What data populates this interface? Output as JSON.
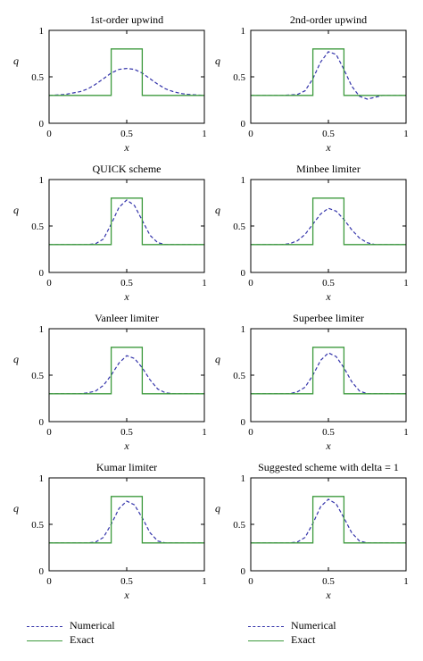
{
  "colors": {
    "numerical": "#3333aa",
    "exact": "#3c9a3c",
    "axes": "#000000"
  },
  "chart_data": [
    {
      "type": "line",
      "title": "1st-order upwind",
      "xlabel": "x",
      "ylabel": "q",
      "xlim": [
        0,
        1
      ],
      "ylim": [
        0,
        1
      ],
      "xticks": [
        "0",
        "0.5",
        "1"
      ],
      "yticks": [
        "0",
        "0.5",
        "1"
      ],
      "grid": false,
      "series": [
        {
          "name": "Numerical",
          "style": "dashed",
          "x": [
            0,
            0.1,
            0.2,
            0.25,
            0.3,
            0.35,
            0.4,
            0.45,
            0.5,
            0.55,
            0.6,
            0.65,
            0.7,
            0.75,
            0.8,
            0.85,
            0.9,
            1.0
          ],
          "y": [
            0.3,
            0.31,
            0.34,
            0.37,
            0.42,
            0.48,
            0.54,
            0.58,
            0.59,
            0.58,
            0.54,
            0.48,
            0.42,
            0.37,
            0.34,
            0.32,
            0.31,
            0.3
          ]
        },
        {
          "name": "Exact",
          "style": "solid",
          "x": [
            0,
            0.4,
            0.4,
            0.6,
            0.6,
            1.0
          ],
          "y": [
            0.3,
            0.3,
            0.8,
            0.8,
            0.3,
            0.3
          ]
        }
      ]
    },
    {
      "type": "line",
      "title": "2nd-order upwind",
      "xlabel": "x",
      "ylabel": "q",
      "xlim": [
        0,
        1
      ],
      "ylim": [
        0,
        1
      ],
      "xticks": [
        "0",
        "0.5",
        "1"
      ],
      "yticks": [
        "0",
        "0.5",
        "1"
      ],
      "grid": false,
      "series": [
        {
          "name": "Numerical",
          "style": "dashed",
          "x": [
            0,
            0.2,
            0.3,
            0.35,
            0.4,
            0.45,
            0.5,
            0.55,
            0.6,
            0.65,
            0.7,
            0.75,
            0.8,
            0.85,
            0.9,
            1.0
          ],
          "y": [
            0.3,
            0.3,
            0.31,
            0.35,
            0.48,
            0.66,
            0.77,
            0.74,
            0.58,
            0.4,
            0.29,
            0.26,
            0.28,
            0.3,
            0.3,
            0.3
          ]
        },
        {
          "name": "Exact",
          "style": "solid",
          "x": [
            0,
            0.4,
            0.4,
            0.6,
            0.6,
            1.0
          ],
          "y": [
            0.3,
            0.3,
            0.8,
            0.8,
            0.3,
            0.3
          ]
        }
      ]
    },
    {
      "type": "line",
      "title": "QUICK scheme",
      "xlabel": "x",
      "ylabel": "q",
      "xlim": [
        0,
        1
      ],
      "ylim": [
        0,
        1
      ],
      "xticks": [
        "0",
        "0.5",
        "1"
      ],
      "yticks": [
        "0",
        "0.5",
        "1"
      ],
      "grid": false,
      "series": [
        {
          "name": "Numerical",
          "style": "dashed",
          "x": [
            0,
            0.25,
            0.3,
            0.35,
            0.4,
            0.45,
            0.5,
            0.55,
            0.6,
            0.65,
            0.7,
            0.75,
            1.0
          ],
          "y": [
            0.3,
            0.3,
            0.31,
            0.36,
            0.52,
            0.7,
            0.78,
            0.72,
            0.56,
            0.4,
            0.32,
            0.3,
            0.3
          ]
        },
        {
          "name": "Exact",
          "style": "solid",
          "x": [
            0,
            0.4,
            0.4,
            0.6,
            0.6,
            1.0
          ],
          "y": [
            0.3,
            0.3,
            0.8,
            0.8,
            0.3,
            0.3
          ]
        }
      ]
    },
    {
      "type": "line",
      "title": "Minbee limiter",
      "xlabel": "x",
      "ylabel": "q",
      "xlim": [
        0,
        1
      ],
      "ylim": [
        0,
        1
      ],
      "xticks": [
        "0",
        "0.5",
        "1"
      ],
      "yticks": [
        "0",
        "0.5",
        "1"
      ],
      "grid": false,
      "series": [
        {
          "name": "Numerical",
          "style": "dashed",
          "x": [
            0,
            0.2,
            0.25,
            0.3,
            0.35,
            0.4,
            0.45,
            0.5,
            0.55,
            0.6,
            0.65,
            0.7,
            0.75,
            0.8,
            1.0
          ],
          "y": [
            0.3,
            0.3,
            0.31,
            0.34,
            0.41,
            0.52,
            0.63,
            0.69,
            0.66,
            0.57,
            0.46,
            0.37,
            0.32,
            0.3,
            0.3
          ]
        },
        {
          "name": "Exact",
          "style": "solid",
          "x": [
            0,
            0.4,
            0.4,
            0.6,
            0.6,
            1.0
          ],
          "y": [
            0.3,
            0.3,
            0.8,
            0.8,
            0.3,
            0.3
          ]
        }
      ]
    },
    {
      "type": "line",
      "title": "Vanleer limiter",
      "xlabel": "x",
      "ylabel": "q",
      "xlim": [
        0,
        1
      ],
      "ylim": [
        0,
        1
      ],
      "xticks": [
        "0",
        "0.5",
        "1"
      ],
      "yticks": [
        "0",
        "0.5",
        "1"
      ],
      "grid": false,
      "series": [
        {
          "name": "Numerical",
          "style": "dashed",
          "x": [
            0,
            0.2,
            0.25,
            0.3,
            0.35,
            0.4,
            0.45,
            0.5,
            0.55,
            0.6,
            0.65,
            0.7,
            0.75,
            0.8,
            1.0
          ],
          "y": [
            0.3,
            0.3,
            0.31,
            0.33,
            0.39,
            0.5,
            0.63,
            0.71,
            0.68,
            0.58,
            0.45,
            0.35,
            0.31,
            0.3,
            0.3
          ]
        },
        {
          "name": "Exact",
          "style": "solid",
          "x": [
            0,
            0.4,
            0.4,
            0.6,
            0.6,
            1.0
          ],
          "y": [
            0.3,
            0.3,
            0.8,
            0.8,
            0.3,
            0.3
          ]
        }
      ]
    },
    {
      "type": "line",
      "title": "Superbee limiter",
      "xlabel": "x",
      "ylabel": "q",
      "xlim": [
        0,
        1
      ],
      "ylim": [
        0,
        1
      ],
      "xticks": [
        "0",
        "0.5",
        "1"
      ],
      "yticks": [
        "0",
        "0.5",
        "1"
      ],
      "grid": false,
      "series": [
        {
          "name": "Numerical",
          "style": "dashed",
          "x": [
            0,
            0.25,
            0.3,
            0.35,
            0.4,
            0.45,
            0.5,
            0.55,
            0.6,
            0.65,
            0.7,
            0.75,
            1.0
          ],
          "y": [
            0.3,
            0.3,
            0.32,
            0.37,
            0.5,
            0.66,
            0.74,
            0.7,
            0.58,
            0.43,
            0.33,
            0.3,
            0.3
          ]
        },
        {
          "name": "Exact",
          "style": "solid",
          "x": [
            0,
            0.4,
            0.4,
            0.6,
            0.6,
            1.0
          ],
          "y": [
            0.3,
            0.3,
            0.8,
            0.8,
            0.3,
            0.3
          ]
        }
      ]
    },
    {
      "type": "line",
      "title": "Kumar limiter",
      "xlabel": "x",
      "ylabel": "q",
      "xlim": [
        0,
        1
      ],
      "ylim": [
        0,
        1
      ],
      "xticks": [
        "0",
        "0.5",
        "1"
      ],
      "yticks": [
        "0",
        "0.5",
        "1"
      ],
      "grid": false,
      "series": [
        {
          "name": "Numerical",
          "style": "dashed",
          "x": [
            0,
            0.25,
            0.3,
            0.35,
            0.4,
            0.45,
            0.5,
            0.55,
            0.6,
            0.65,
            0.7,
            0.75,
            1.0
          ],
          "y": [
            0.3,
            0.3,
            0.31,
            0.36,
            0.5,
            0.67,
            0.75,
            0.71,
            0.57,
            0.41,
            0.32,
            0.3,
            0.3
          ]
        },
        {
          "name": "Exact",
          "style": "solid",
          "x": [
            0,
            0.4,
            0.4,
            0.6,
            0.6,
            1.0
          ],
          "y": [
            0.3,
            0.3,
            0.8,
            0.8,
            0.3,
            0.3
          ]
        }
      ]
    },
    {
      "type": "line",
      "title": "Suggested scheme with delta = 1",
      "xlabel": "x",
      "ylabel": "q",
      "xlim": [
        0,
        1
      ],
      "ylim": [
        0,
        1
      ],
      "xticks": [
        "0",
        "0.5",
        "1"
      ],
      "yticks": [
        "0",
        "0.5",
        "1"
      ],
      "grid": false,
      "series": [
        {
          "name": "Numerical",
          "style": "dashed",
          "x": [
            0,
            0.25,
            0.3,
            0.35,
            0.4,
            0.45,
            0.5,
            0.55,
            0.6,
            0.65,
            0.7,
            0.75,
            1.0
          ],
          "y": [
            0.3,
            0.3,
            0.31,
            0.36,
            0.51,
            0.69,
            0.77,
            0.72,
            0.57,
            0.41,
            0.32,
            0.3,
            0.3
          ]
        },
        {
          "name": "Exact",
          "style": "solid",
          "x": [
            0,
            0.4,
            0.4,
            0.6,
            0.6,
            1.0
          ],
          "y": [
            0.3,
            0.3,
            0.8,
            0.8,
            0.3,
            0.3
          ]
        }
      ]
    }
  ],
  "legend": {
    "numerical_label": "Numerical",
    "exact_label": "Exact"
  }
}
